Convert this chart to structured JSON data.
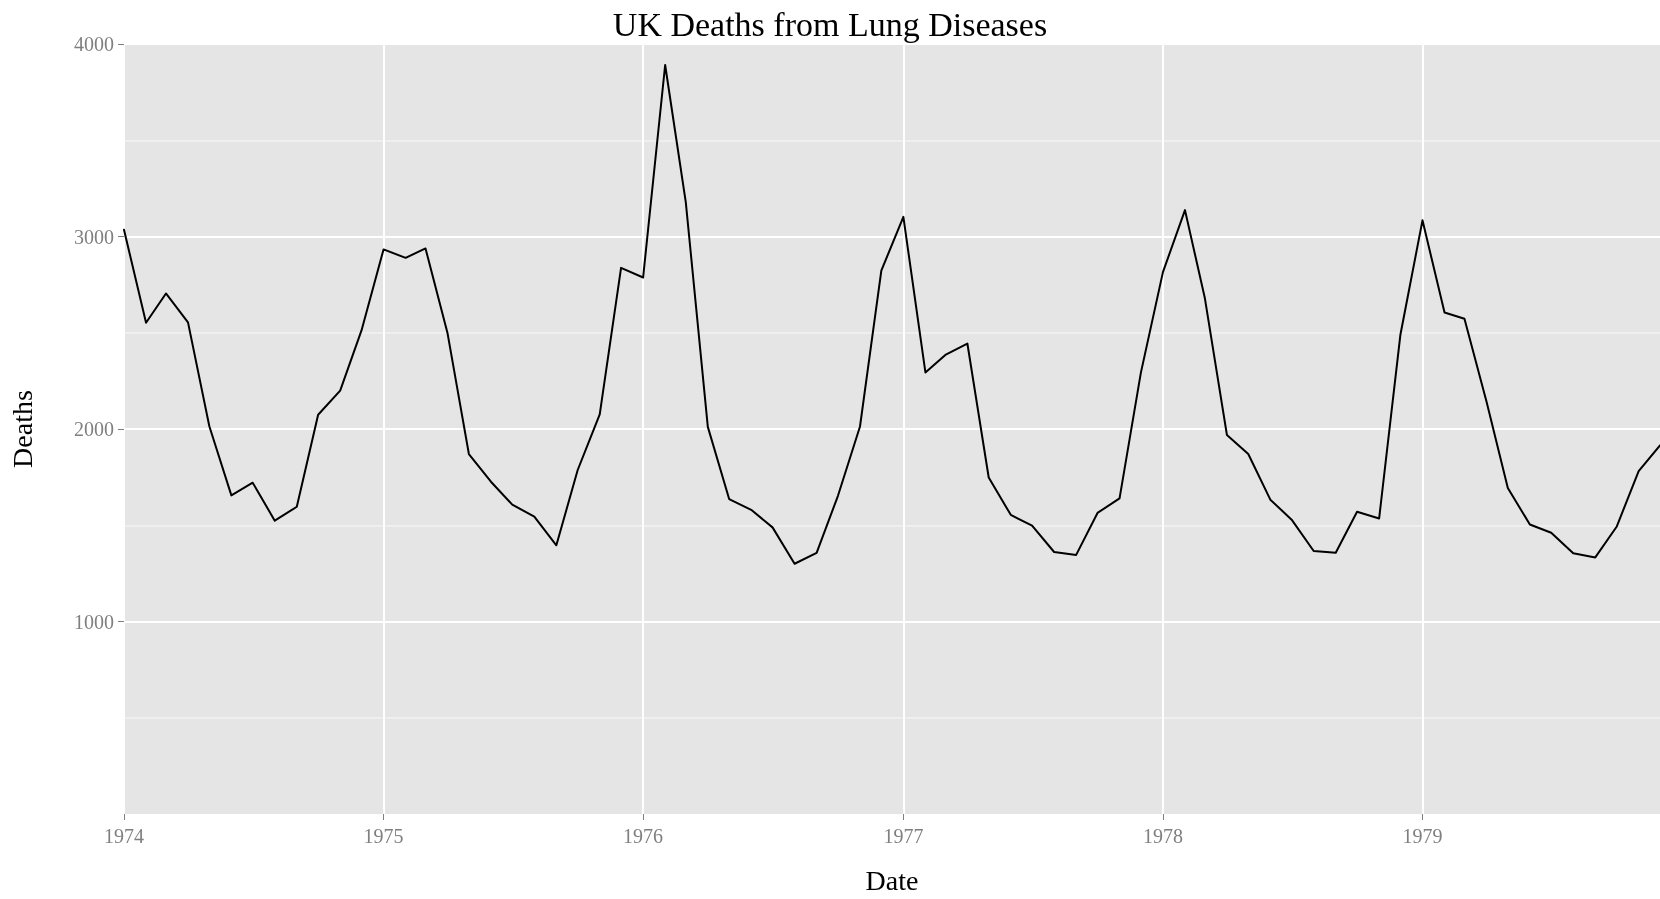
{
  "chart_data": {
    "type": "line",
    "title": "UK Deaths from Lung Diseases",
    "xlabel": "Date",
    "ylabel": "Deaths",
    "x": [
      "1974-01",
      "1974-02",
      "1974-03",
      "1974-04",
      "1974-05",
      "1974-06",
      "1974-07",
      "1974-08",
      "1974-09",
      "1974-10",
      "1974-11",
      "1974-12",
      "1975-01",
      "1975-02",
      "1975-03",
      "1975-04",
      "1975-05",
      "1975-06",
      "1975-07",
      "1975-08",
      "1975-09",
      "1975-10",
      "1975-11",
      "1975-12",
      "1976-01",
      "1976-02",
      "1976-03",
      "1976-04",
      "1976-05",
      "1976-06",
      "1976-07",
      "1976-08",
      "1976-09",
      "1976-10",
      "1976-11",
      "1976-12",
      "1977-01",
      "1977-02",
      "1977-03",
      "1977-04",
      "1977-05",
      "1977-06",
      "1977-07",
      "1977-08",
      "1977-09",
      "1977-10",
      "1977-11",
      "1977-12",
      "1978-01",
      "1978-02",
      "1978-03",
      "1978-04",
      "1978-05",
      "1978-06",
      "1978-07",
      "1978-08",
      "1978-09",
      "1978-10",
      "1978-11",
      "1978-12",
      "1979-01",
      "1979-02",
      "1979-03",
      "1979-04",
      "1979-05",
      "1979-06",
      "1979-07",
      "1979-08",
      "1979-09",
      "1979-10",
      "1979-11",
      "1979-12"
    ],
    "series": [
      {
        "color": "#000000",
        "values": [
          3035,
          2552,
          2704,
          2554,
          2014,
          1655,
          1721,
          1524,
          1596,
          2074,
          2199,
          2512,
          2933,
          2889,
          2938,
          2497,
          1870,
          1726,
          1607,
          1545,
          1396,
          1787,
          2076,
          2837,
          2787,
          3891,
          3179,
          2011,
          1636,
          1580,
          1489,
          1300,
          1356,
          1653,
          2013,
          2823,
          3102,
          2294,
          2385,
          2444,
          1748,
          1554,
          1498,
          1361,
          1346,
          1564,
          1640,
          2293,
          2815,
          3137,
          2679,
          1969,
          1870,
          1633,
          1529,
          1366,
          1357,
          1570,
          1535,
          2491,
          3084,
          2605,
          2573,
          2143,
          1693,
          1504,
          1461,
          1354,
          1333,
          1492,
          1781,
          1915
        ]
      }
    ],
    "xlim": [
      "1974-01",
      "1979-12"
    ],
    "xticks": [
      {
        "value": "1974-01",
        "label": "1974"
      },
      {
        "value": "1975-01",
        "label": "1975"
      },
      {
        "value": "1976-01",
        "label": "1976"
      },
      {
        "value": "1977-01",
        "label": "1977"
      },
      {
        "value": "1978-01",
        "label": "1978"
      },
      {
        "value": "1979-01",
        "label": "1979"
      }
    ],
    "ylim": [
      0,
      4000
    ],
    "yticks": [
      1000,
      2000,
      3000,
      4000
    ],
    "grid": true,
    "marker": "none",
    "line_style": "solid"
  }
}
